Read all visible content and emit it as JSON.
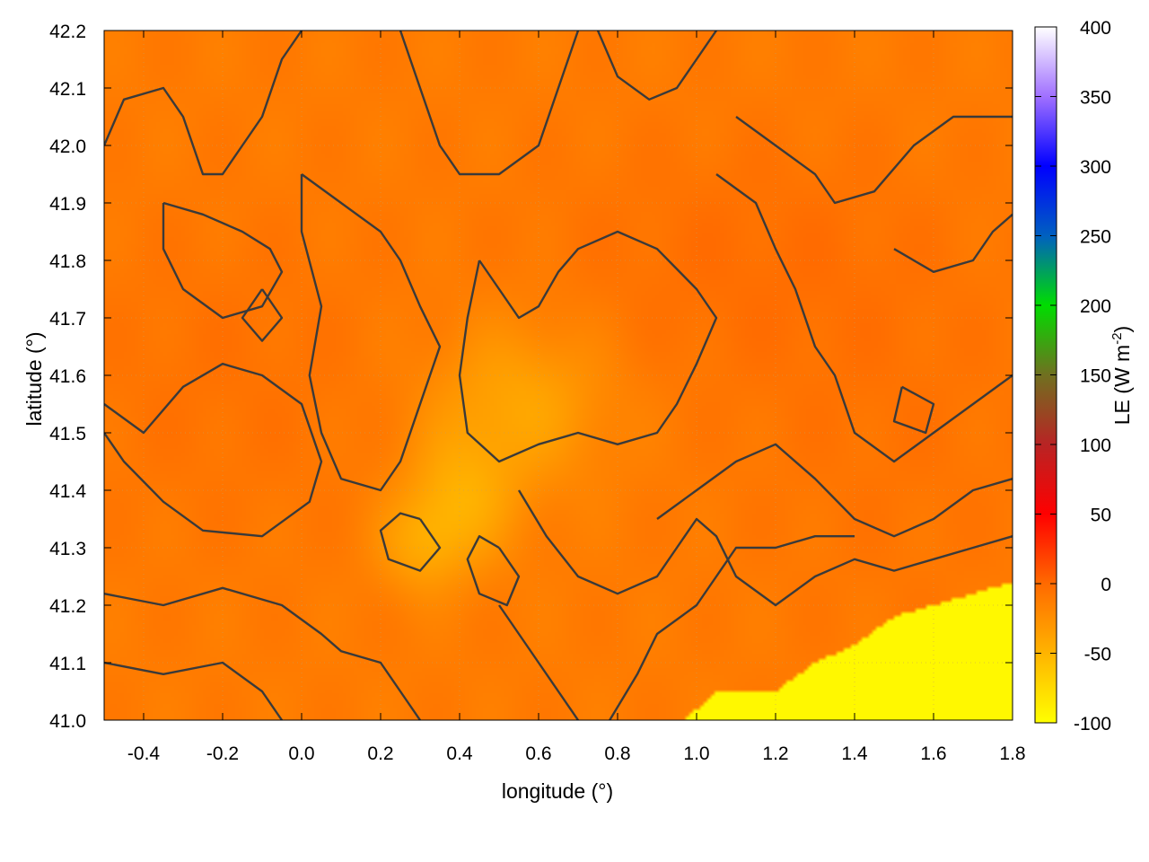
{
  "chart_data": {
    "type": "heatmap",
    "xlabel": "longitude (°)",
    "ylabel": "latitude (°)",
    "xlim": [
      -0.5,
      1.8
    ],
    "ylim": [
      41.0,
      42.2
    ],
    "xticks": [
      -0.4,
      -0.2,
      0.0,
      0.2,
      0.4,
      0.6,
      0.8,
      1.0,
      1.2,
      1.4,
      1.6,
      1.8
    ],
    "xtick_labels": [
      "-0.4",
      "-0.2",
      "0.0",
      "0.2",
      "0.4",
      "0.6",
      "0.8",
      "1.0",
      "1.2",
      "1.4",
      "1.6",
      "1.8"
    ],
    "yticks": [
      41.0,
      41.1,
      41.2,
      41.3,
      41.4,
      41.5,
      41.6,
      41.7,
      41.8,
      41.9,
      42.0,
      42.1,
      42.2
    ],
    "ytick_labels": [
      "41.0",
      "41.1",
      "41.2",
      "41.3",
      "41.4",
      "41.5",
      "41.6",
      "41.7",
      "41.8",
      "41.9",
      "42.0",
      "42.1",
      "42.2"
    ],
    "grid": true,
    "colorbar": {
      "label": "LE (W m",
      "label_superscript": "-2",
      "label_close": ")",
      "range": [
        -100,
        400
      ],
      "ticks": [
        -100,
        -50,
        0,
        50,
        100,
        150,
        200,
        250,
        300,
        350,
        400
      ],
      "tick_labels": [
        "-100",
        "-50",
        "0",
        "50",
        "100",
        "150",
        "200",
        "250",
        "300",
        "350",
        "400"
      ],
      "stops": [
        {
          "value": -100,
          "color": "#ffff00"
        },
        {
          "value": -50,
          "color": "#ffb400"
        },
        {
          "value": 0,
          "color": "#ff6a00"
        },
        {
          "value": 50,
          "color": "#ff0000"
        },
        {
          "value": 100,
          "color": "#b82424"
        },
        {
          "value": 150,
          "color": "#707020"
        },
        {
          "value": 200,
          "color": "#00dd00"
        },
        {
          "value": 250,
          "color": "#0060c0"
        },
        {
          "value": 300,
          "color": "#0000ff"
        },
        {
          "value": 350,
          "color": "#a070ff"
        },
        {
          "value": 400,
          "color": "#ffffff"
        }
      ]
    },
    "field": {
      "background_value": -12,
      "features": [
        {
          "kind": "bump",
          "lon": 0.55,
          "lat": 41.55,
          "sigma_lon": 0.16,
          "sigma_lat": 0.1,
          "amplitude": -28
        },
        {
          "kind": "bump",
          "lon": 0.4,
          "lat": 41.38,
          "sigma_lon": 0.1,
          "sigma_lat": 0.08,
          "amplitude": -30
        },
        {
          "kind": "bump",
          "lon": 0.3,
          "lat": 41.3,
          "sigma_lon": 0.08,
          "sigma_lat": 0.06,
          "amplitude": -22
        },
        {
          "kind": "bump",
          "lon": 1.1,
          "lat": 41.8,
          "sigma_lon": 0.35,
          "sigma_lat": 0.15,
          "amplitude": 8
        },
        {
          "kind": "bump",
          "lon": -0.2,
          "lat": 41.6,
          "sigma_lon": 0.3,
          "sigma_lat": 0.2,
          "amplitude": 6
        },
        {
          "kind": "bump",
          "lon": 1.5,
          "lat": 41.5,
          "sigma_lon": 0.3,
          "sigma_lat": 0.25,
          "amplitude": 5
        }
      ],
      "sea_value": -95,
      "coastline": [
        [
          0.97,
          41.0
        ],
        [
          1.05,
          41.05
        ],
        [
          1.2,
          41.05
        ],
        [
          1.3,
          41.1
        ],
        [
          1.4,
          41.13
        ],
        [
          1.5,
          41.18
        ],
        [
          1.6,
          41.2
        ],
        [
          1.7,
          41.22
        ],
        [
          1.8,
          41.24
        ]
      ]
    },
    "contours": [
      [
        [
          -0.5,
          42.0
        ],
        [
          -0.45,
          42.08
        ],
        [
          -0.35,
          42.1
        ],
        [
          -0.3,
          42.05
        ],
        [
          -0.25,
          41.95
        ],
        [
          -0.2,
          41.95
        ],
        [
          -0.15,
          42.0
        ],
        [
          -0.1,
          42.05
        ],
        [
          -0.05,
          42.15
        ],
        [
          0.0,
          42.2
        ]
      ],
      [
        [
          -0.35,
          41.9
        ],
        [
          -0.25,
          41.88
        ],
        [
          -0.15,
          41.85
        ],
        [
          -0.08,
          41.82
        ],
        [
          -0.05,
          41.78
        ],
        [
          -0.1,
          41.72
        ],
        [
          -0.2,
          41.7
        ],
        [
          -0.3,
          41.75
        ],
        [
          -0.35,
          41.82
        ],
        [
          -0.35,
          41.9
        ]
      ],
      [
        [
          -0.5,
          41.55
        ],
        [
          -0.4,
          41.5
        ],
        [
          -0.3,
          41.58
        ],
        [
          -0.2,
          41.62
        ],
        [
          -0.1,
          41.6
        ],
        [
          0.0,
          41.55
        ],
        [
          0.05,
          41.45
        ],
        [
          0.02,
          41.38
        ],
        [
          -0.1,
          41.32
        ],
        [
          -0.25,
          41.33
        ],
        [
          -0.35,
          41.38
        ],
        [
          -0.45,
          41.45
        ],
        [
          -0.5,
          41.5
        ]
      ],
      [
        [
          -0.5,
          41.22
        ],
        [
          -0.35,
          41.2
        ],
        [
          -0.2,
          41.23
        ],
        [
          -0.05,
          41.2
        ],
        [
          0.05,
          41.15
        ],
        [
          0.1,
          41.12
        ],
        [
          0.2,
          41.1
        ],
        [
          0.25,
          41.05
        ],
        [
          0.3,
          41.0
        ]
      ],
      [
        [
          -0.5,
          41.1
        ],
        [
          -0.35,
          41.08
        ],
        [
          -0.2,
          41.1
        ],
        [
          -0.1,
          41.05
        ],
        [
          -0.05,
          41.0
        ]
      ],
      [
        [
          0.0,
          41.95
        ],
        [
          0.1,
          41.9
        ],
        [
          0.2,
          41.85
        ],
        [
          0.25,
          41.8
        ],
        [
          0.3,
          41.72
        ],
        [
          0.35,
          41.65
        ],
        [
          0.3,
          41.55
        ],
        [
          0.25,
          41.45
        ],
        [
          0.2,
          41.4
        ],
        [
          0.1,
          41.42
        ],
        [
          0.05,
          41.5
        ],
        [
          0.02,
          41.6
        ],
        [
          0.05,
          41.72
        ],
        [
          0.0,
          41.85
        ],
        [
          0.0,
          41.95
        ]
      ],
      [
        [
          0.25,
          42.2
        ],
        [
          0.3,
          42.1
        ],
        [
          0.35,
          42.0
        ],
        [
          0.4,
          41.95
        ],
        [
          0.5,
          41.95
        ],
        [
          0.6,
          42.0
        ],
        [
          0.65,
          42.1
        ],
        [
          0.7,
          42.2
        ]
      ],
      [
        [
          0.45,
          41.8
        ],
        [
          0.5,
          41.75
        ],
        [
          0.55,
          41.7
        ],
        [
          0.6,
          41.72
        ],
        [
          0.65,
          41.78
        ],
        [
          0.7,
          41.82
        ],
        [
          0.8,
          41.85
        ],
        [
          0.9,
          41.82
        ],
        [
          1.0,
          41.75
        ],
        [
          1.05,
          41.7
        ],
        [
          1.0,
          41.62
        ],
        [
          0.95,
          41.55
        ],
        [
          0.9,
          41.5
        ],
        [
          0.8,
          41.48
        ],
        [
          0.7,
          41.5
        ],
        [
          0.6,
          41.48
        ],
        [
          0.5,
          41.45
        ],
        [
          0.42,
          41.5
        ],
        [
          0.4,
          41.6
        ],
        [
          0.42,
          41.7
        ],
        [
          0.45,
          41.8
        ]
      ],
      [
        [
          0.75,
          42.2
        ],
        [
          0.8,
          42.12
        ],
        [
          0.88,
          42.08
        ],
        [
          0.95,
          42.1
        ],
        [
          1.0,
          42.15
        ],
        [
          1.05,
          42.2
        ]
      ],
      [
        [
          1.1,
          42.05
        ],
        [
          1.2,
          42.0
        ],
        [
          1.3,
          41.95
        ],
        [
          1.35,
          41.9
        ],
        [
          1.45,
          41.92
        ],
        [
          1.55,
          42.0
        ],
        [
          1.65,
          42.05
        ],
        [
          1.8,
          42.05
        ]
      ],
      [
        [
          1.05,
          41.95
        ],
        [
          1.15,
          41.9
        ],
        [
          1.2,
          41.82
        ],
        [
          1.25,
          41.75
        ],
        [
          1.3,
          41.65
        ],
        [
          1.35,
          41.6
        ],
        [
          1.4,
          41.5
        ],
        [
          1.5,
          41.45
        ],
        [
          1.6,
          41.5
        ],
        [
          1.7,
          41.55
        ],
        [
          1.8,
          41.6
        ]
      ],
      [
        [
          1.5,
          41.82
        ],
        [
          1.6,
          41.78
        ],
        [
          1.7,
          41.8
        ],
        [
          1.75,
          41.85
        ],
        [
          1.8,
          41.88
        ]
      ],
      [
        [
          0.9,
          41.35
        ],
        [
          1.0,
          41.4
        ],
        [
          1.1,
          41.45
        ],
        [
          1.2,
          41.48
        ],
        [
          1.3,
          41.42
        ],
        [
          1.4,
          41.35
        ],
        [
          1.5,
          41.32
        ],
        [
          1.6,
          41.35
        ],
        [
          1.7,
          41.4
        ],
        [
          1.8,
          41.42
        ]
      ],
      [
        [
          0.55,
          41.4
        ],
        [
          0.62,
          41.32
        ],
        [
          0.7,
          41.25
        ],
        [
          0.8,
          41.22
        ],
        [
          0.9,
          41.25
        ],
        [
          0.95,
          41.3
        ],
        [
          1.0,
          41.35
        ],
        [
          1.05,
          41.32
        ],
        [
          1.1,
          41.25
        ],
        [
          1.2,
          41.2
        ],
        [
          1.3,
          41.25
        ],
        [
          1.4,
          41.28
        ],
        [
          1.5,
          41.26
        ],
        [
          1.6,
          41.28
        ],
        [
          1.7,
          41.3
        ],
        [
          1.8,
          41.32
        ]
      ],
      [
        [
          0.5,
          41.2
        ],
        [
          0.55,
          41.15
        ],
        [
          0.6,
          41.1
        ],
        [
          0.65,
          41.05
        ],
        [
          0.7,
          41.0
        ]
      ],
      [
        [
          0.78,
          41.0
        ],
        [
          0.85,
          41.08
        ],
        [
          0.9,
          41.15
        ],
        [
          1.0,
          41.2
        ],
        [
          1.05,
          41.25
        ],
        [
          1.1,
          41.3
        ],
        [
          1.2,
          41.3
        ],
        [
          1.3,
          41.32
        ],
        [
          1.4,
          41.32
        ]
      ],
      [
        [
          0.5,
          41.3
        ],
        [
          0.55,
          41.25
        ],
        [
          0.52,
          41.2
        ],
        [
          0.45,
          41.22
        ],
        [
          0.42,
          41.28
        ],
        [
          0.45,
          41.32
        ],
        [
          0.5,
          41.3
        ]
      ],
      [
        [
          0.3,
          41.35
        ],
        [
          0.35,
          41.3
        ],
        [
          0.3,
          41.26
        ],
        [
          0.22,
          41.28
        ],
        [
          0.2,
          41.33
        ],
        [
          0.25,
          41.36
        ],
        [
          0.3,
          41.35
        ]
      ],
      [
        [
          -0.1,
          41.75
        ],
        [
          -0.05,
          41.7
        ],
        [
          -0.1,
          41.66
        ],
        [
          -0.15,
          41.7
        ],
        [
          -0.1,
          41.75
        ]
      ],
      [
        [
          1.52,
          41.58
        ],
        [
          1.6,
          41.55
        ],
        [
          1.58,
          41.5
        ],
        [
          1.5,
          41.52
        ],
        [
          1.52,
          41.58
        ]
      ]
    ]
  }
}
